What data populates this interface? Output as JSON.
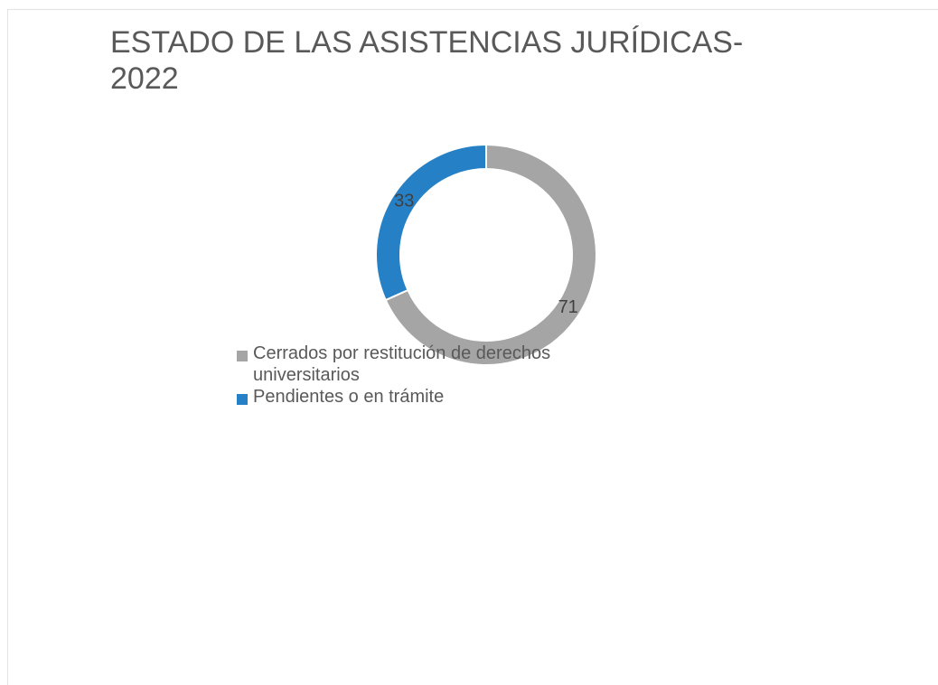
{
  "chart_data": {
    "type": "donut",
    "title": "ESTADO DE LAS ASISTENCIAS JURÍDICAS-2022",
    "categories": [
      "Cerrados por restitución de derechos universitarios",
      "Pendientes o en trámite"
    ],
    "values": [
      71,
      33
    ],
    "colors": [
      "#a5a5a5",
      "#2580c5"
    ],
    "legend": "bottom-left"
  }
}
